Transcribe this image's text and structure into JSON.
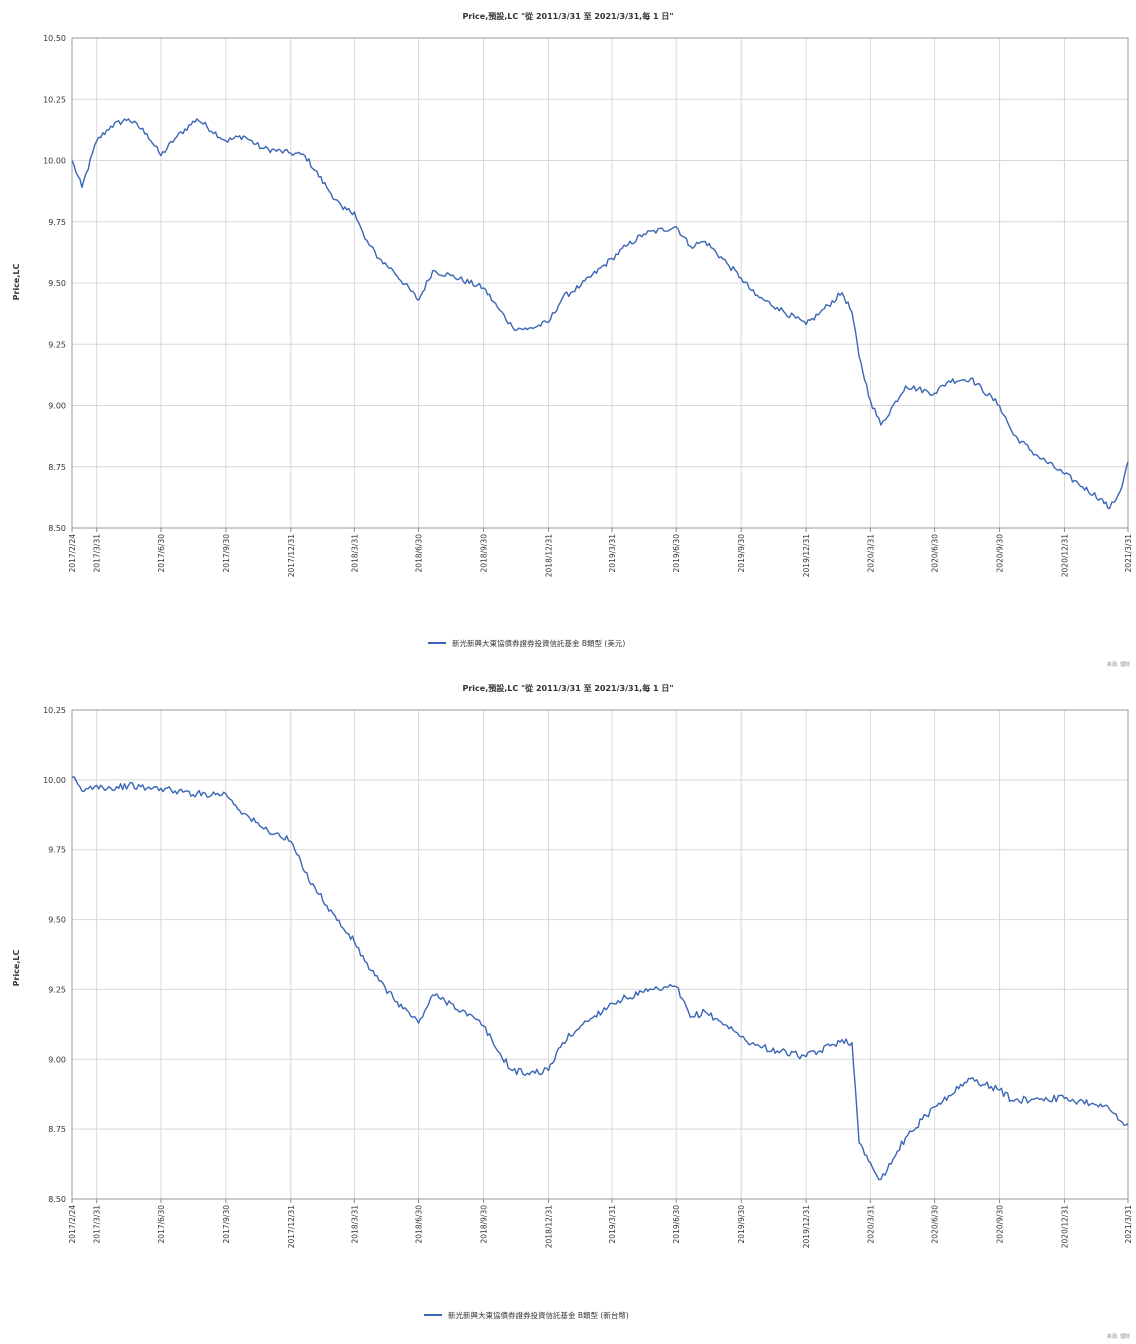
{
  "chart_data": [
    {
      "type": "line",
      "title": "Price,預設,LC \"從 2011/3/31 至 2021/3/31,每 1 日\"",
      "ylabel": "Price,LC",
      "xlabel": "",
      "ylim": [
        8.5,
        10.5
      ],
      "y_ticks": [
        "10.50",
        "10.25",
        "10.00",
        "9.75",
        "9.50",
        "9.25",
        "9.00",
        "8.75",
        "8.50"
      ],
      "x_ticks": [
        "2017/2/24",
        "2017/3/31",
        "2017/6/30",
        "2017/9/30",
        "2017/12/31",
        "2018/3/31",
        "2018/6/30",
        "2018/9/30",
        "2018/12/31",
        "2019/3/31",
        "2019/6/30",
        "2019/9/30",
        "2019/12/31",
        "2020/3/31",
        "2020/6/30",
        "2020/9/30",
        "2020/12/31",
        "2021/3/31"
      ],
      "grid": true,
      "legend_position": "bottom-center",
      "color": "#3a66b5",
      "footer": "來源: 理財",
      "series": [
        {
          "name": "新光新興大東協債券證券投資信託基金 B類型 (美元)",
          "x": [
            "2017/2/24",
            "2017/3/10",
            "2017/3/31",
            "2017/4/20",
            "2017/5/15",
            "2017/6/10",
            "2017/6/30",
            "2017/7/20",
            "2017/8/20",
            "2017/9/30",
            "2017/10/25",
            "2017/11/20",
            "2017/12/31",
            "2018/1/20",
            "2018/2/20",
            "2018/3/15",
            "2018/3/31",
            "2018/4/15",
            "2018/5/5",
            "2018/5/25",
            "2018/6/30",
            "2018/7/20",
            "2018/8/15",
            "2018/9/30",
            "2018/10/20",
            "2018/11/10",
            "2018/12/1",
            "2018/12/31",
            "2019/1/20",
            "2019/2/15",
            "2019/3/31",
            "2019/4/20",
            "2019/5/15",
            "2019/6/30",
            "2019/7/20",
            "2019/8/10",
            "2019/9/10",
            "2019/9/30",
            "2019/10/20",
            "2019/11/20",
            "2019/12/31",
            "2020/1/20",
            "2020/2/20",
            "2020/3/5",
            "2020/3/15",
            "2020/3/31",
            "2020/4/15",
            "2020/5/20",
            "2020/6/30",
            "2020/7/20",
            "2020/8/20",
            "2020/9/30",
            "2020/10/20",
            "2020/11/20",
            "2020/12/31",
            "2021/1/20",
            "2021/2/20",
            "2021/3/5",
            "2021/3/20",
            "2021/3/31"
          ],
          "values": [
            10.0,
            9.89,
            10.08,
            10.14,
            10.17,
            10.11,
            10.02,
            10.09,
            10.17,
            10.08,
            10.1,
            10.05,
            10.03,
            10.02,
            9.89,
            9.8,
            9.79,
            9.68,
            9.6,
            9.55,
            9.43,
            9.55,
            9.53,
            9.48,
            9.4,
            9.32,
            9.31,
            9.34,
            9.44,
            9.49,
            9.6,
            9.65,
            9.7,
            9.73,
            9.65,
            9.67,
            9.58,
            9.52,
            9.45,
            9.4,
            9.33,
            9.38,
            9.46,
            9.38,
            9.2,
            9.02,
            8.92,
            9.08,
            9.05,
            9.1,
            9.11,
            9.0,
            8.88,
            8.8,
            8.72,
            8.68,
            8.62,
            8.58,
            8.65,
            8.77
          ]
        }
      ]
    },
    {
      "type": "line",
      "title": "Price,預設,LC \"從 2011/3/31 至 2021/3/31,每 1 日\"",
      "ylabel": "Price,LC",
      "xlabel": "",
      "ylim": [
        8.5,
        10.25
      ],
      "y_ticks": [
        "10.25",
        "10.00",
        "9.75",
        "9.50",
        "9.25",
        "9.00",
        "8.75",
        "8.50"
      ],
      "x_ticks": [
        "2017/2/24",
        "2017/3/31",
        "2017/6/30",
        "2017/9/30",
        "2017/12/31",
        "2018/3/31",
        "2018/6/30",
        "2018/9/30",
        "2018/12/31",
        "2019/3/31",
        "2019/6/30",
        "2019/9/30",
        "2019/12/31",
        "2020/3/31",
        "2020/6/30",
        "2020/9/30",
        "2020/12/31",
        "2021/3/31"
      ],
      "grid": true,
      "legend_position": "bottom-center",
      "color": "#3a66b5",
      "footer": "來源: 理財",
      "series": [
        {
          "name": "新光新興大東協債券證券投資信託基金 B類型 (新台幣)",
          "x": [
            "2017/2/24",
            "2017/3/10",
            "2017/3/31",
            "2017/4/20",
            "2017/5/15",
            "2017/6/10",
            "2017/6/30",
            "2017/7/20",
            "2017/8/20",
            "2017/9/30",
            "2017/10/25",
            "2017/11/20",
            "2017/12/31",
            "2018/1/20",
            "2018/2/20",
            "2018/3/15",
            "2018/3/31",
            "2018/4/15",
            "2018/5/5",
            "2018/5/25",
            "2018/6/30",
            "2018/7/20",
            "2018/8/15",
            "2018/9/30",
            "2018/10/20",
            "2018/11/10",
            "2018/12/1",
            "2018/12/31",
            "2019/1/20",
            "2019/2/15",
            "2019/3/31",
            "2019/4/20",
            "2019/5/15",
            "2019/6/30",
            "2019/7/20",
            "2019/8/10",
            "2019/9/10",
            "2019/9/30",
            "2019/10/20",
            "2019/11/20",
            "2019/12/31",
            "2020/1/20",
            "2020/2/20",
            "2020/3/5",
            "2020/3/15",
            "2020/3/31",
            "2020/4/15",
            "2020/5/20",
            "2020/6/30",
            "2020/7/20",
            "2020/8/20",
            "2020/9/30",
            "2020/10/20",
            "2020/11/20",
            "2020/12/31",
            "2021/1/20",
            "2021/2/20",
            "2021/3/5",
            "2021/3/20",
            "2021/3/31"
          ],
          "values": [
            10.01,
            9.96,
            9.98,
            9.97,
            9.98,
            9.97,
            9.97,
            9.96,
            9.95,
            9.95,
            9.88,
            9.83,
            9.78,
            9.67,
            9.55,
            9.47,
            9.42,
            9.35,
            9.28,
            9.22,
            9.13,
            9.23,
            9.2,
            9.12,
            9.03,
            8.96,
            8.95,
            8.96,
            9.06,
            9.12,
            9.2,
            9.22,
            9.24,
            9.26,
            9.15,
            9.17,
            9.12,
            9.08,
            9.05,
            9.03,
            9.01,
            9.03,
            9.07,
            9.06,
            8.7,
            8.63,
            8.57,
            8.72,
            8.83,
            8.87,
            8.93,
            8.89,
            8.85,
            8.86,
            8.86,
            8.85,
            8.84,
            8.82,
            8.78,
            8.77
          ]
        }
      ]
    }
  ]
}
